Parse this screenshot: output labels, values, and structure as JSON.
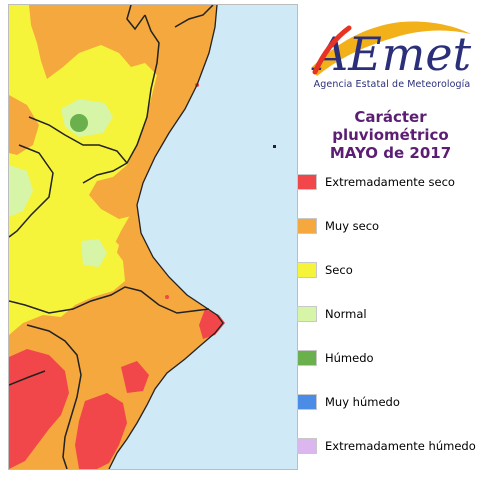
{
  "logo": {
    "text": "AEmet",
    "subtitle": "Agencia Estatal de Meteorología",
    "colors": {
      "blue": "#2b2f7a",
      "red": "#e63323",
      "orange": "#f2a900",
      "purple": "#5a3b86"
    }
  },
  "title": {
    "line1": "Carácter pluviométrico",
    "line2": "MAYO de 2017"
  },
  "legend": [
    {
      "label": "Extremadamente seco",
      "color": "#f2474a"
    },
    {
      "label": "Muy seco",
      "color": "#f5a83d"
    },
    {
      "label": "Seco",
      "color": "#f6f43a"
    },
    {
      "label": "Normal",
      "color": "#d6f5a6"
    },
    {
      "label": "Húmedo",
      "color": "#6ab04c"
    },
    {
      "label": "Muy húmedo",
      "color": "#4b8de6"
    },
    {
      "label": "Extremadamente húmedo",
      "color": "#dcb6ee"
    }
  ],
  "map": {
    "sea_color": "#cfe9f7",
    "border_color": "#222222"
  }
}
